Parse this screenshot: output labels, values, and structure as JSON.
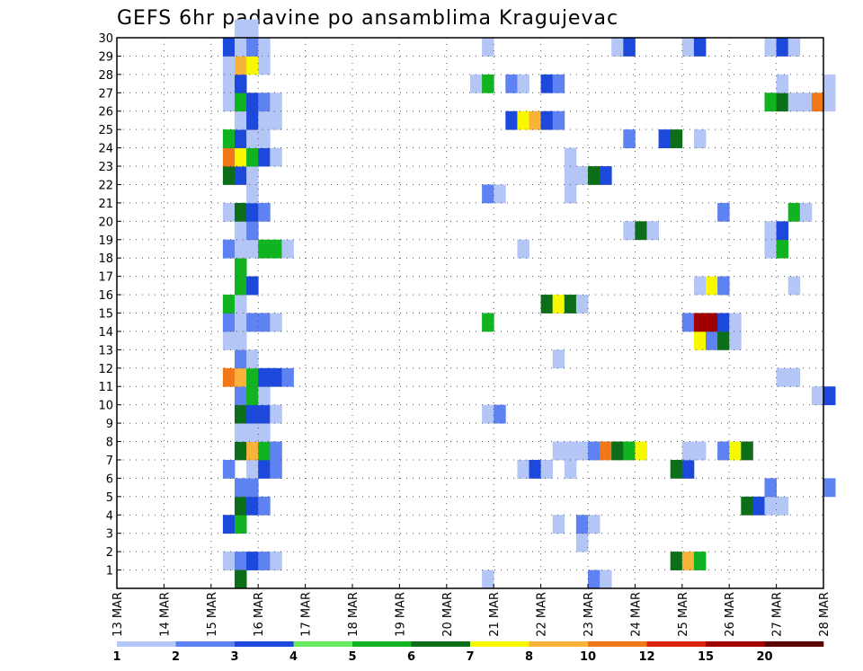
{
  "chart_data": {
    "type": "heatmap",
    "title": "GEFS 6hr padavine po ansamblima Kragujevac",
    "xlabel": "",
    "ylabel": "",
    "x_axis": {
      "unit": "6-hour step",
      "start_date_label": "13 MAR",
      "range": [
        0,
        60
      ],
      "tick_labels": [
        "13 MAR",
        "14 MAR",
        "15 MAR",
        "16 MAR",
        "17 MAR",
        "18 MAR",
        "19 MAR",
        "20 MAR",
        "21 MAR",
        "22 MAR",
        "23 MAR",
        "24 MAR",
        "25 MAR",
        "26 MAR",
        "27 MAR",
        "28 MAR"
      ]
    },
    "y_axis": {
      "range": [
        0,
        30
      ],
      "tick_labels": [
        "1",
        "2",
        "3",
        "4",
        "5",
        "6",
        "7",
        "8",
        "9",
        "10",
        "11",
        "12",
        "13",
        "14",
        "15",
        "16",
        "17",
        "18",
        "19",
        "20",
        "21",
        "22",
        "23",
        "24",
        "25",
        "26",
        "27",
        "28",
        "29",
        "30"
      ]
    },
    "grid": "dotted",
    "legend": {
      "placement": "bottom",
      "labels": [
        "1",
        "2",
        "3",
        "4",
        "5",
        "6",
        "7",
        "8",
        "10",
        "12",
        "15",
        "20"
      ],
      "colors": [
        "#b4c6f5",
        "#5f82f2",
        "#1c48dc",
        "#69e95e",
        "#10b420",
        "#0d6e1a",
        "#f8f800",
        "#f8b43a",
        "#f07818",
        "#db2410",
        "#a00000",
        "#5c0000"
      ]
    },
    "cells": [
      [
        9,
        1,
        1
      ],
      [
        10,
        1,
        2
      ],
      [
        11,
        1,
        3
      ],
      [
        12,
        1,
        2
      ],
      [
        13,
        1,
        1
      ],
      [
        10,
        0,
        6
      ],
      [
        31,
        0,
        1
      ],
      [
        40,
        0,
        2
      ],
      [
        41,
        0,
        1
      ],
      [
        47,
        1,
        6
      ],
      [
        48,
        1,
        8
      ],
      [
        49,
        1,
        5
      ],
      [
        39,
        2,
        1
      ],
      [
        9,
        3,
        3
      ],
      [
        10,
        3,
        5
      ],
      [
        37,
        3,
        1
      ],
      [
        39,
        3,
        2
      ],
      [
        40,
        3,
        1
      ],
      [
        10,
        4,
        6
      ],
      [
        11,
        4,
        3
      ],
      [
        12,
        4,
        2
      ],
      [
        53,
        4,
        6
      ],
      [
        54,
        4,
        3
      ],
      [
        55,
        4,
        1
      ],
      [
        56,
        4,
        1
      ],
      [
        10,
        5,
        2
      ],
      [
        11,
        5,
        2
      ],
      [
        55,
        5,
        2
      ],
      [
        60,
        5,
        2
      ],
      [
        9,
        6,
        2
      ],
      [
        11,
        6,
        1
      ],
      [
        12,
        6,
        3
      ],
      [
        13,
        6,
        2
      ],
      [
        34,
        6,
        1
      ],
      [
        35,
        6,
        3
      ],
      [
        36,
        6,
        1
      ],
      [
        38,
        6,
        1
      ],
      [
        47,
        6,
        6
      ],
      [
        48,
        6,
        3
      ],
      [
        10,
        7,
        6
      ],
      [
        11,
        7,
        8
      ],
      [
        12,
        7,
        5
      ],
      [
        13,
        7,
        2
      ],
      [
        37,
        7,
        1
      ],
      [
        38,
        7,
        1
      ],
      [
        39,
        7,
        1
      ],
      [
        40,
        7,
        2
      ],
      [
        41,
        7,
        9
      ],
      [
        42,
        7,
        6
      ],
      [
        43,
        7,
        5
      ],
      [
        44,
        7,
        7
      ],
      [
        48,
        7,
        1
      ],
      [
        49,
        7,
        1
      ],
      [
        51,
        7,
        2
      ],
      [
        52,
        7,
        7
      ],
      [
        53,
        7,
        6
      ],
      [
        10,
        8,
        1
      ],
      [
        11,
        8,
        1
      ],
      [
        12,
        8,
        1
      ],
      [
        10,
        9,
        6
      ],
      [
        11,
        9,
        3
      ],
      [
        12,
        9,
        3
      ],
      [
        13,
        9,
        1
      ],
      [
        31,
        9,
        1
      ],
      [
        32,
        9,
        2
      ],
      [
        10,
        10,
        2
      ],
      [
        11,
        10,
        5
      ],
      [
        12,
        10,
        1
      ],
      [
        59,
        10,
        1
      ],
      [
        60,
        10,
        3
      ],
      [
        9,
        11,
        9
      ],
      [
        10,
        11,
        8
      ],
      [
        11,
        11,
        5
      ],
      [
        12,
        11,
        3
      ],
      [
        13,
        11,
        3
      ],
      [
        14,
        11,
        2
      ],
      [
        56,
        11,
        1
      ],
      [
        57,
        11,
        1
      ],
      [
        10,
        12,
        2
      ],
      [
        11,
        12,
        1
      ],
      [
        37,
        12,
        1
      ],
      [
        9,
        13,
        1
      ],
      [
        10,
        13,
        1
      ],
      [
        49,
        13,
        7
      ],
      [
        50,
        13,
        2
      ],
      [
        51,
        13,
        6
      ],
      [
        52,
        13,
        1
      ],
      [
        9,
        14,
        2
      ],
      [
        10,
        14,
        1
      ],
      [
        11,
        14,
        2
      ],
      [
        12,
        14,
        2
      ],
      [
        13,
        14,
        1
      ],
      [
        31,
        14,
        5
      ],
      [
        48,
        14,
        2
      ],
      [
        49,
        14,
        11
      ],
      [
        50,
        14,
        11
      ],
      [
        51,
        14,
        3
      ],
      [
        52,
        14,
        1
      ],
      [
        9,
        15,
        5
      ],
      [
        10,
        15,
        1
      ],
      [
        36,
        15,
        6
      ],
      [
        37,
        15,
        7
      ],
      [
        38,
        15,
        6
      ],
      [
        39,
        15,
        1
      ],
      [
        10,
        16,
        5
      ],
      [
        11,
        16,
        3
      ],
      [
        49,
        16,
        1
      ],
      [
        50,
        16,
        7
      ],
      [
        51,
        16,
        2
      ],
      [
        57,
        16,
        1
      ],
      [
        10,
        17,
        5
      ],
      [
        9,
        18,
        2
      ],
      [
        10,
        18,
        1
      ],
      [
        11,
        18,
        1
      ],
      [
        12,
        18,
        5
      ],
      [
        13,
        18,
        5
      ],
      [
        14,
        18,
        1
      ],
      [
        34,
        18,
        1
      ],
      [
        55,
        18,
        1
      ],
      [
        56,
        18,
        5
      ],
      [
        10,
        19,
        1
      ],
      [
        11,
        19,
        2
      ],
      [
        43,
        19,
        1
      ],
      [
        44,
        19,
        6
      ],
      [
        45,
        19,
        1
      ],
      [
        55,
        19,
        1
      ],
      [
        56,
        19,
        3
      ],
      [
        9,
        20,
        1
      ],
      [
        10,
        20,
        6
      ],
      [
        11,
        20,
        3
      ],
      [
        12,
        20,
        2
      ],
      [
        51,
        20,
        2
      ],
      [
        57,
        20,
        5
      ],
      [
        58,
        20,
        1
      ],
      [
        11,
        21,
        1
      ],
      [
        31,
        21,
        2
      ],
      [
        32,
        21,
        1
      ],
      [
        38,
        21,
        1
      ],
      [
        9,
        22,
        6
      ],
      [
        10,
        22,
        3
      ],
      [
        11,
        22,
        1
      ],
      [
        38,
        22,
        1
      ],
      [
        39,
        22,
        1
      ],
      [
        40,
        22,
        6
      ],
      [
        41,
        22,
        3
      ],
      [
        9,
        23,
        9
      ],
      [
        10,
        23,
        7
      ],
      [
        11,
        23,
        5
      ],
      [
        12,
        23,
        3
      ],
      [
        13,
        23,
        1
      ],
      [
        38,
        23,
        1
      ],
      [
        9,
        24,
        5
      ],
      [
        10,
        24,
        3
      ],
      [
        11,
        24,
        1
      ],
      [
        12,
        24,
        1
      ],
      [
        43,
        24,
        2
      ],
      [
        46,
        24,
        3
      ],
      [
        47,
        24,
        6
      ],
      [
        49,
        24,
        1
      ],
      [
        10,
        25,
        1
      ],
      [
        11,
        25,
        3
      ],
      [
        12,
        25,
        1
      ],
      [
        13,
        25,
        1
      ],
      [
        33,
        25,
        3
      ],
      [
        34,
        25,
        7
      ],
      [
        35,
        25,
        8
      ],
      [
        36,
        25,
        3
      ],
      [
        37,
        25,
        2
      ],
      [
        9,
        26,
        1
      ],
      [
        10,
        26,
        5
      ],
      [
        11,
        26,
        3
      ],
      [
        12,
        26,
        2
      ],
      [
        13,
        26,
        1
      ],
      [
        55,
        26,
        5
      ],
      [
        56,
        26,
        6
      ],
      [
        57,
        26,
        1
      ],
      [
        58,
        26,
        1
      ],
      [
        59,
        26,
        9
      ],
      [
        60,
        26,
        1
      ],
      [
        9,
        27,
        1
      ],
      [
        10,
        27,
        3
      ],
      [
        30,
        27,
        1
      ],
      [
        31,
        27,
        5
      ],
      [
        33,
        27,
        2
      ],
      [
        34,
        27,
        1
      ],
      [
        36,
        27,
        3
      ],
      [
        37,
        27,
        2
      ],
      [
        56,
        27,
        1
      ],
      [
        60,
        27,
        1
      ],
      [
        9,
        28,
        1
      ],
      [
        10,
        28,
        8
      ],
      [
        11,
        28,
        7
      ],
      [
        12,
        28,
        1
      ],
      [
        9,
        29,
        3
      ],
      [
        10,
        29,
        1
      ],
      [
        11,
        29,
        2
      ],
      [
        12,
        29,
        1
      ],
      [
        31,
        29,
        1
      ],
      [
        42,
        29,
        1
      ],
      [
        43,
        29,
        3
      ],
      [
        48,
        29,
        1
      ],
      [
        49,
        29,
        3
      ],
      [
        55,
        29,
        1
      ],
      [
        56,
        29,
        3
      ],
      [
        57,
        29,
        1
      ],
      [
        10,
        30,
        1
      ],
      [
        11,
        30,
        1
      ]
    ]
  }
}
